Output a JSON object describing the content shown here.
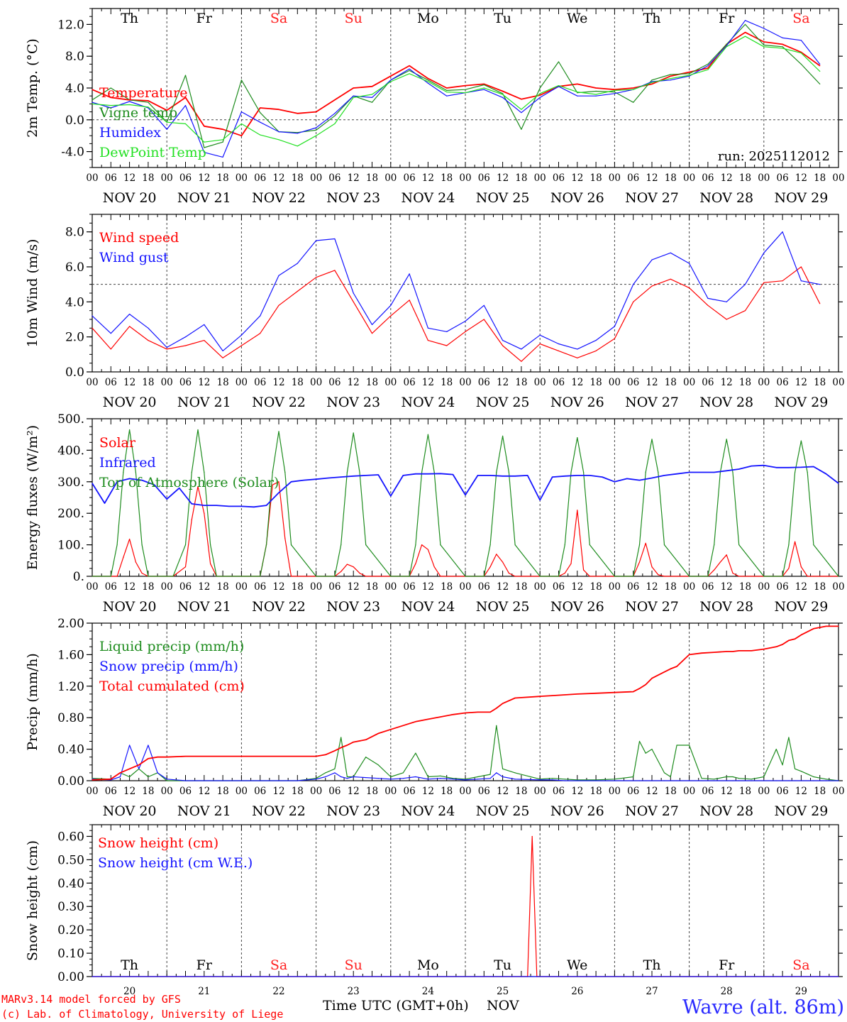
{
  "colors": {
    "red": "#ff0000",
    "blue": "#1414ff",
    "green": "#1e8c1e",
    "lime": "#22e022",
    "darkgreen": "#1e8c1e",
    "black": "#000000",
    "weekend": "#ff2020",
    "location": "#2a2aff"
  },
  "days": [
    {
      "abbr": "Th",
      "weekend": false,
      "date": "NOV 20",
      "num": "20"
    },
    {
      "abbr": "Fr",
      "weekend": false,
      "date": "NOV 21",
      "num": "21"
    },
    {
      "abbr": "Sa",
      "weekend": true,
      "date": "NOV 22",
      "num": "22"
    },
    {
      "abbr": "Su",
      "weekend": true,
      "date": "NOV 23",
      "num": "23"
    },
    {
      "abbr": "Mo",
      "weekend": false,
      "date": "NOV 24",
      "num": "24"
    },
    {
      "abbr": "Tu",
      "weekend": false,
      "date": "NOV 25",
      "num": "25"
    },
    {
      "abbr": "We",
      "weekend": false,
      "date": "NOV 26",
      "num": "26"
    },
    {
      "abbr": "Th",
      "weekend": false,
      "date": "NOV 27",
      "num": "27"
    },
    {
      "abbr": "Fr",
      "weekend": false,
      "date": "NOV 28",
      "num": "28"
    },
    {
      "abbr": "Sa",
      "weekend": true,
      "date": "NOV 29",
      "num": "29"
    }
  ],
  "hour_ticks": [
    "00",
    "06",
    "12",
    "18"
  ],
  "final_tick": "00",
  "footer": {
    "model_line": "MARv3.14 model forced by GFS",
    "lab_line": "(c) Lab. of Climatology, University of Liege",
    "time_label": "Time UTC (GMT+0h)",
    "month_label": "NOV",
    "location": "Wavre (alt. 86m)"
  },
  "chart_data": [
    {
      "type": "line",
      "id": "temp",
      "ylabel": "2m Temp. (°C)",
      "ylim": [
        -6,
        14
      ],
      "yticks": [
        -4,
        0,
        4,
        8,
        12
      ],
      "ytick_labels": [
        "-4.0",
        "0.0",
        "4.0",
        "8.0",
        "12.0"
      ],
      "ref_line": 0,
      "annotation": "run: 2025112012",
      "x_hours": [
        0,
        6,
        12,
        18,
        24,
        30,
        36,
        42,
        48,
        54,
        60,
        66,
        72,
        78,
        84,
        90,
        96,
        102,
        108,
        114,
        120,
        126,
        132,
        138,
        144,
        150,
        156,
        162,
        168,
        174,
        180,
        186,
        192,
        198,
        204,
        210,
        216,
        222,
        228,
        234
      ],
      "series": [
        {
          "name": "Temperature",
          "color": "red",
          "values": [
            3.8,
            2.8,
            2.5,
            2.4,
            1.2,
            2.8,
            -0.8,
            -1.2,
            -2,
            1.5,
            1.3,
            0.8,
            1,
            2.5,
            4,
            4.2,
            5.5,
            6.8,
            5.2,
            4,
            4.3,
            4.5,
            3.6,
            2.6,
            3.1,
            4.2,
            4.5,
            4,
            3.8,
            4,
            4.5,
            5.5,
            6,
            6.5,
            9.5,
            11,
            9.8,
            9.5,
            8.5,
            6.8
          ]
        },
        {
          "name": "Vigne temp",
          "color": "darkgreen",
          "values": [
            2.5,
            4,
            2.5,
            2.2,
            -0.3,
            5.6,
            -3.5,
            -2.8,
            5,
            0.9,
            -1.5,
            -1.6,
            -1.3,
            0.5,
            3,
            2.2,
            5,
            6.2,
            5,
            3.7,
            3.8,
            4.4,
            3.3,
            -1.2,
            4,
            7.3,
            3.4,
            3.6,
            3.5,
            2.2,
            5,
            5.7,
            5.8,
            7,
            9.5,
            12,
            9.4,
            9.2,
            7,
            4.5
          ]
        },
        {
          "name": "Humidex",
          "color": "blue",
          "values": [
            2.2,
            1.5,
            2.3,
            1.5,
            -1.2,
            1.8,
            -4.1,
            -4.7,
            1,
            -0.3,
            -1.5,
            -1.7,
            -1,
            0.8,
            3,
            2.8,
            5,
            6.4,
            4.6,
            3,
            3.4,
            3.8,
            2.8,
            0.9,
            2.8,
            4.2,
            3,
            3,
            3.3,
            3.8,
            4.8,
            5,
            5.5,
            6.8,
            9.3,
            12.5,
            11.5,
            10.3,
            10,
            7
          ]
        },
        {
          "name": "DewPoint Temp",
          "color": "lime",
          "values": [
            2,
            1.8,
            1.9,
            1.6,
            -0.3,
            -0.5,
            -2.8,
            -2.5,
            -0.5,
            -1.9,
            -2.5,
            -3.3,
            -2,
            -0.5,
            2.8,
            3.2,
            4.8,
            5.8,
            4.8,
            3.5,
            3.4,
            4,
            3.2,
            1.3,
            3.3,
            4.3,
            3.5,
            3.2,
            3.7,
            3.8,
            4.7,
            5.2,
            5.6,
            6.3,
            9.2,
            10.5,
            9.2,
            9,
            8.4,
            6.1
          ]
        }
      ]
    },
    {
      "type": "line",
      "id": "wind",
      "ylabel": "10m Wind (m/s)",
      "ylim": [
        0,
        9
      ],
      "yticks": [
        0,
        2,
        4,
        6,
        8
      ],
      "ytick_labels": [
        "0.0",
        "2.0",
        "4.0",
        "6.0",
        "8.0"
      ],
      "ref_line": 5,
      "x_hours": [
        0,
        6,
        12,
        18,
        24,
        30,
        36,
        42,
        48,
        54,
        60,
        66,
        72,
        78,
        84,
        90,
        96,
        102,
        108,
        114,
        120,
        126,
        132,
        138,
        144,
        150,
        156,
        162,
        168,
        174,
        180,
        186,
        192,
        198,
        204,
        210,
        216,
        222,
        228,
        234
      ],
      "series": [
        {
          "name": "Wind speed",
          "color": "red",
          "values": [
            2.5,
            1.3,
            2.6,
            1.8,
            1.3,
            1.5,
            1.8,
            0.8,
            1.5,
            2.2,
            3.8,
            4.6,
            5.4,
            5.8,
            4,
            2.2,
            3.2,
            4.1,
            1.8,
            1.5,
            2.3,
            3,
            1.5,
            0.6,
            1.6,
            1.2,
            0.8,
            1.2,
            1.9,
            4,
            4.9,
            5.3,
            4.8,
            3.8,
            3,
            3.5,
            5.1,
            5.2,
            6,
            3.9
          ]
        },
        {
          "name": "Wind gust",
          "color": "blue",
          "values": [
            3.2,
            2.2,
            3.3,
            2.5,
            1.4,
            2,
            2.7,
            1.2,
            2.1,
            3.2,
            5.5,
            6.2,
            7.5,
            7.6,
            4.5,
            2.7,
            3.8,
            5.6,
            2.5,
            2.3,
            2.9,
            3.8,
            1.8,
            1.3,
            2.1,
            1.6,
            1.3,
            1.8,
            2.6,
            5,
            6.4,
            6.8,
            6.2,
            4.2,
            4,
            5,
            6.8,
            8,
            5.2,
            5
          ]
        }
      ]
    },
    {
      "type": "line",
      "id": "energy",
      "ylabel": "Energy fluxes (W/m²)",
      "ylim": [
        0,
        500
      ],
      "yticks": [
        0,
        100,
        200,
        300,
        400,
        500
      ],
      "ytick_labels": [
        "0.",
        "100.",
        "200.",
        "300.",
        "400.",
        "500."
      ],
      "x_hours": [
        0,
        6,
        8,
        10,
        12,
        14,
        16,
        18,
        24,
        26,
        30,
        32,
        34,
        36,
        38,
        40,
        48,
        54,
        56,
        58,
        60,
        62,
        64,
        72,
        78,
        80,
        82,
        84,
        86,
        88,
        96,
        102,
        104,
        106,
        108,
        110,
        112,
        120,
        126,
        128,
        130,
        132,
        134,
        136,
        144,
        150,
        152,
        154,
        156,
        158,
        160,
        168,
        174,
        176,
        178,
        180,
        182,
        184,
        192,
        198,
        200,
        202,
        204,
        206,
        208,
        216,
        222,
        224,
        226,
        228,
        230,
        232,
        240
      ],
      "series": [
        {
          "name": "Solar",
          "color": "red",
          "values": [
            0,
            0,
            0,
            60,
            118,
            45,
            10,
            0,
            0,
            0,
            30,
            180,
            285,
            200,
            40,
            0,
            0,
            0,
            100,
            290,
            300,
            120,
            0,
            0,
            0,
            15,
            38,
            30,
            10,
            0,
            0,
            0,
            40,
            100,
            85,
            30,
            0,
            0,
            0,
            30,
            70,
            45,
            10,
            0,
            0,
            0,
            10,
            40,
            210,
            20,
            0,
            0,
            0,
            45,
            105,
            30,
            5,
            0,
            0,
            0,
            20,
            45,
            68,
            10,
            0,
            0,
            0,
            25,
            110,
            30,
            0,
            0,
            0
          ]
        },
        {
          "name": "Top of Atmosphere (Solar)",
          "color": "darkgreen",
          "values": [
            0,
            0,
            100,
            330,
            465,
            330,
            100,
            0,
            0,
            0,
            100,
            330,
            465,
            330,
            100,
            0,
            0,
            0,
            100,
            330,
            460,
            330,
            100,
            0,
            0,
            100,
            330,
            455,
            330,
            100,
            0,
            0,
            100,
            330,
            450,
            330,
            100,
            0,
            0,
            100,
            330,
            445,
            330,
            100,
            0,
            0,
            100,
            330,
            440,
            330,
            100,
            0,
            0,
            100,
            330,
            435,
            330,
            100,
            0,
            0,
            100,
            330,
            435,
            330,
            100,
            0,
            0,
            100,
            330,
            430,
            330,
            100,
            0
          ]
        }
      ],
      "infrared": {
        "name": "Infrared",
        "color": "blue",
        "x_hours": [
          0,
          4,
          8,
          12,
          16,
          20,
          24,
          28,
          32,
          36,
          40,
          44,
          48,
          52,
          56,
          60,
          64,
          68,
          72,
          76,
          80,
          84,
          88,
          92,
          96,
          100,
          104,
          108,
          112,
          116,
          120,
          124,
          128,
          132,
          136,
          140,
          144,
          148,
          152,
          156,
          160,
          164,
          168,
          172,
          176,
          180,
          184,
          188,
          192,
          196,
          200,
          204,
          208,
          212,
          216,
          220,
          224,
          228,
          232,
          236,
          240
        ],
        "values": [
          295,
          232,
          300,
          310,
          305,
          290,
          245,
          280,
          230,
          225,
          225,
          222,
          222,
          220,
          225,
          265,
          300,
          305,
          308,
          312,
          315,
          318,
          320,
          322,
          255,
          320,
          325,
          325,
          326,
          323,
          258,
          320,
          320,
          318,
          318,
          320,
          242,
          315,
          318,
          320,
          320,
          315,
          300,
          310,
          305,
          312,
          320,
          325,
          330,
          330,
          330,
          335,
          340,
          350,
          352,
          345,
          345,
          346,
          348,
          325,
          295
        ]
      }
    },
    {
      "type": "line",
      "id": "precip",
      "ylabel": "Precip (mm/h)",
      "ylim": [
        0,
        2
      ],
      "yticks": [
        0,
        0.4,
        0.8,
        1.2,
        1.6,
        2.0
      ],
      "ytick_labels": [
        "0.00",
        "0.40",
        "0.80",
        "1.20",
        "1.60",
        "2.00"
      ],
      "x_hours": [
        0,
        6,
        9,
        12,
        15,
        18,
        21,
        24,
        30,
        36,
        42,
        48,
        54,
        60,
        66,
        72,
        75,
        78,
        80,
        82,
        84,
        88,
        92,
        96,
        100,
        104,
        108,
        112,
        116,
        120,
        124,
        128,
        130,
        132,
        136,
        144,
        148,
        152,
        156,
        162,
        168,
        174,
        176,
        178,
        180,
        184,
        186,
        188,
        192,
        196,
        200,
        204,
        206,
        208,
        212,
        216,
        220,
        222,
        224,
        226,
        228,
        232,
        236,
        240
      ],
      "series": [
        {
          "name": "Liquid precip (mm/h)",
          "color": "darkgreen",
          "values": [
            0.03,
            0.02,
            0.1,
            0.05,
            0.15,
            0.05,
            0.1,
            0,
            0,
            0,
            0,
            0,
            0,
            0,
            0,
            0.03,
            0.1,
            0.15,
            0.55,
            0.05,
            0.05,
            0.3,
            0.2,
            0.05,
            0.1,
            0.35,
            0.05,
            0.06,
            0.03,
            0.02,
            0.05,
            0.08,
            0.7,
            0.15,
            0.1,
            0.02,
            0.03,
            0.02,
            0.01,
            0.01,
            0.02,
            0.05,
            0.5,
            0.35,
            0.4,
            0.1,
            0.05,
            0.45,
            0.45,
            0.03,
            0.02,
            0.05,
            0.05,
            0.03,
            0.02,
            0.05,
            0.4,
            0.2,
            0.55,
            0.15,
            0.12,
            0.05,
            0.02,
            0
          ]
        },
        {
          "name": "Snow precip (mm/h)",
          "color": "blue",
          "values": [
            0.02,
            0.01,
            0.05,
            0.45,
            0.15,
            0.45,
            0.1,
            0.02,
            0,
            0,
            0,
            0,
            0,
            0,
            0,
            0.02,
            0.05,
            0.1,
            0.05,
            0.03,
            0.05,
            0.04,
            0.03,
            0.02,
            0.03,
            0.05,
            0.02,
            0.03,
            0.02,
            0.01,
            0.02,
            0.03,
            0.1,
            0.05,
            0.02,
            0.01,
            0.01,
            0,
            0,
            0,
            0,
            0,
            0,
            0,
            0,
            0,
            0,
            0,
            0,
            0,
            0,
            0,
            0,
            0,
            0,
            0,
            0,
            0,
            0,
            0,
            0,
            0,
            0,
            0
          ]
        },
        {
          "name": "Total cumulated (cm)",
          "color": "red",
          "values": [
            0.01,
            0.02,
            0.1,
            0.15,
            0.2,
            0.28,
            0.3,
            0.3,
            0.31,
            0.31,
            0.31,
            0.31,
            0.31,
            0.31,
            0.31,
            0.31,
            0.33,
            0.38,
            0.42,
            0.45,
            0.49,
            0.52,
            0.6,
            0.65,
            0.7,
            0.75,
            0.78,
            0.81,
            0.84,
            0.86,
            0.87,
            0.87,
            0.92,
            0.98,
            1.05,
            1.07,
            1.08,
            1.09,
            1.1,
            1.11,
            1.12,
            1.13,
            1.17,
            1.22,
            1.3,
            1.38,
            1.42,
            1.45,
            1.6,
            1.62,
            1.63,
            1.64,
            1.64,
            1.65,
            1.65,
            1.67,
            1.7,
            1.73,
            1.78,
            1.8,
            1.85,
            1.93,
            1.96,
            1.96
          ]
        }
      ]
    },
    {
      "type": "line",
      "id": "snow",
      "ylabel": "Snow height (cm)",
      "ylim": [
        0,
        0.65
      ],
      "yticks": [
        0,
        0.1,
        0.2,
        0.3,
        0.4,
        0.5,
        0.6
      ],
      "ytick_labels": [
        "0.00",
        "0.10",
        "0.20",
        "0.30",
        "0.40",
        "0.50",
        "0.60"
      ],
      "x_hours": [
        0,
        140,
        141.5,
        143,
        240
      ],
      "series": [
        {
          "name": "Snow height (cm)",
          "color": "red",
          "values": [
            0,
            0,
            0.6,
            0,
            0
          ]
        },
        {
          "name": "Snow height (cm W.E.)",
          "color": "blue",
          "values": [
            0,
            0,
            0,
            0,
            0
          ]
        }
      ]
    }
  ]
}
